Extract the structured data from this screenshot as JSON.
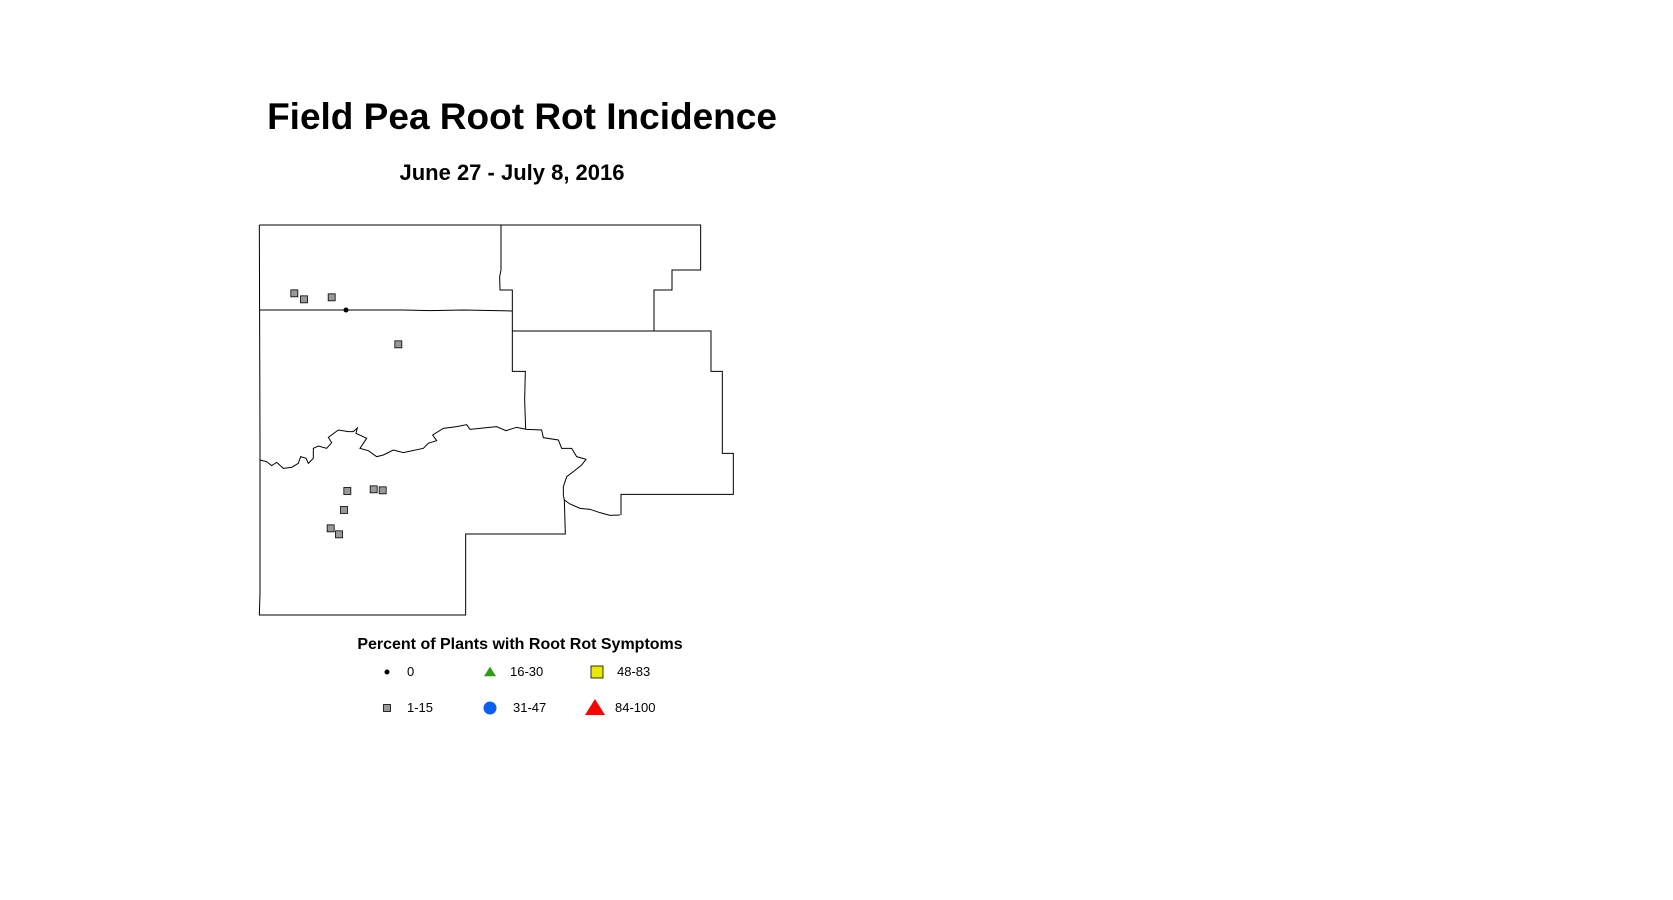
{
  "title": "Field Pea Root Rot Incidence",
  "subtitle": "June 27 - July 8, 2016",
  "legend": {
    "title": "Percent of Plants with Root Rot Symptoms",
    "items": [
      {
        "label": "0",
        "symbol": "small-dot",
        "color": "#000000"
      },
      {
        "label": "16-30",
        "symbol": "triangle",
        "color": "#2e9e0e"
      },
      {
        "label": "48-83",
        "symbol": "square",
        "color": "#e8e800"
      },
      {
        "label": "1-15",
        "symbol": "square",
        "color": "#999999"
      },
      {
        "label": "31-47",
        "symbol": "circle",
        "color": "#0a5ff0"
      },
      {
        "label": "84-100",
        "symbol": "triangle",
        "color": "#ff0000"
      }
    ]
  }
}
